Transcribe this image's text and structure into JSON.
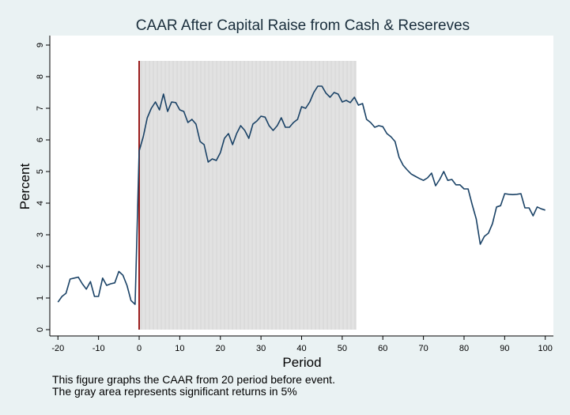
{
  "chart_data": {
    "type": "line",
    "title": "CAAR After Capital Raise from Cash & Resereves",
    "xlabel": "Period",
    "ylabel": "Percent",
    "xlim": [
      -22,
      102
    ],
    "ylim": [
      -0.2,
      9.3
    ],
    "xticks": [
      -20,
      -10,
      0,
      10,
      20,
      30,
      40,
      50,
      60,
      70,
      80,
      90,
      100
    ],
    "yticks": [
      0,
      1,
      2,
      3,
      4,
      5,
      6,
      7,
      8,
      9
    ],
    "grid": false,
    "significant_region": {
      "x": [
        0,
        53.5
      ],
      "y": [
        0,
        8.5
      ],
      "color": "#e2e2e2"
    },
    "event_line": {
      "x": 0,
      "y": [
        0,
        8.5
      ],
      "color": "#9b1b1b"
    },
    "series_color": "#1a4266",
    "series": [
      {
        "x": [
          -20,
          -19,
          -18,
          -17,
          -16,
          -15,
          -14,
          -13,
          -12,
          -11,
          -10,
          -9,
          -8,
          -7,
          -6,
          -5,
          -4,
          -3,
          -2,
          -1,
          0,
          1,
          2,
          3,
          4,
          5,
          6,
          7,
          8,
          9,
          10,
          11,
          12,
          13,
          14,
          15,
          16,
          17,
          18,
          19,
          20,
          21,
          22,
          23,
          24,
          25,
          26,
          27,
          28,
          29,
          30,
          31,
          32,
          33,
          34,
          35,
          36,
          37,
          38,
          39,
          40,
          41,
          42,
          43,
          44,
          45,
          46,
          47,
          48,
          49,
          50,
          51,
          52,
          53,
          54,
          55,
          56,
          57,
          58,
          59,
          60,
          61,
          62,
          63,
          64,
          65,
          66,
          67,
          68,
          69,
          70,
          71,
          72,
          73,
          74,
          75,
          76,
          77,
          78,
          79,
          80,
          81,
          82,
          83,
          84,
          85,
          86,
          87,
          88,
          89,
          90,
          91,
          92,
          93,
          94,
          95,
          96,
          97,
          98,
          99,
          100
        ],
        "y": [
          0.87,
          1.05,
          1.15,
          1.6,
          1.63,
          1.66,
          1.45,
          1.28,
          1.52,
          1.05,
          1.05,
          1.63,
          1.4,
          1.45,
          1.48,
          1.84,
          1.72,
          1.4,
          0.92,
          0.8,
          5.65,
          6.1,
          6.7,
          7.0,
          7.2,
          6.95,
          7.45,
          6.9,
          7.2,
          7.18,
          6.95,
          6.9,
          6.55,
          6.65,
          6.5,
          5.95,
          5.85,
          5.3,
          5.4,
          5.35,
          5.6,
          6.05,
          6.2,
          5.85,
          6.2,
          6.45,
          6.3,
          6.05,
          6.5,
          6.6,
          6.75,
          6.72,
          6.45,
          6.3,
          6.45,
          6.7,
          6.4,
          6.4,
          6.55,
          6.65,
          7.05,
          7.0,
          7.2,
          7.5,
          7.7,
          7.7,
          7.48,
          7.35,
          7.5,
          7.45,
          7.2,
          7.25,
          7.18,
          7.35,
          7.1,
          7.15,
          6.65,
          6.55,
          6.4,
          6.45,
          6.42,
          6.2,
          6.1,
          5.95,
          5.45,
          5.2,
          5.05,
          4.92,
          4.85,
          4.78,
          4.72,
          4.8,
          4.95,
          4.55,
          4.75,
          5.0,
          4.72,
          4.75,
          4.58,
          4.58,
          4.45,
          4.45,
          3.95,
          3.5,
          2.7,
          2.95,
          3.05,
          3.35,
          3.88,
          3.92,
          4.3,
          4.28,
          4.27,
          4.28,
          4.3,
          3.85,
          3.85,
          3.6,
          3.88,
          3.82,
          3.78
        ]
      }
    ],
    "notes": [
      "This figure graphs the CAAR from 20 period before event.",
      "The gray area represents significant returns in 5%"
    ]
  }
}
